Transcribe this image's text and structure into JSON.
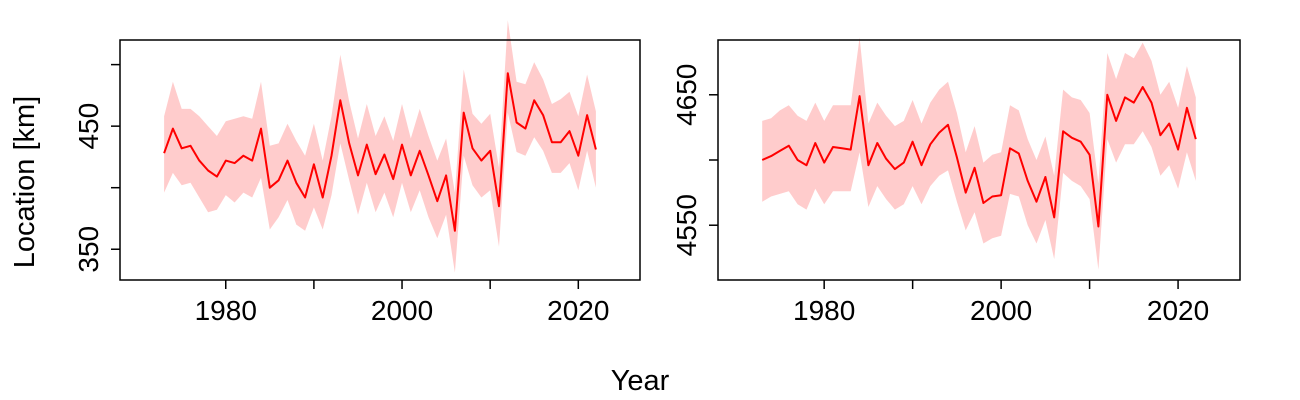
{
  "figure": {
    "xlabel": "Year",
    "ylabel": "Location [km]"
  },
  "chart_data": [
    {
      "type": "line",
      "title": "",
      "xlim": [
        1968,
        2027
      ],
      "ylim": [
        325,
        520
      ],
      "xticks": [
        1980,
        2000,
        2020
      ],
      "xticks_minor": [
        1990,
        2010
      ],
      "yticks": [
        350,
        450
      ],
      "yticks_minor": [
        400,
        500
      ],
      "grid": false,
      "legend": "none",
      "line_color": "#ff0000",
      "band_color": "#ffcccc",
      "series": [
        {
          "x": [
            1973,
            1974,
            1975,
            1976,
            1977,
            1978,
            1979,
            1980,
            1981,
            1982,
            1983,
            1984,
            1985,
            1986,
            1987,
            1988,
            1989,
            1990,
            1991,
            1992,
            1993,
            1994,
            1995,
            1996,
            1997,
            1998,
            1999,
            2000,
            2001,
            2002,
            2003,
            2004,
            2005,
            2006,
            2007,
            2008,
            2009,
            2010,
            2011,
            2012,
            2013,
            2014,
            2015,
            2016,
            2017,
            2018,
            2019,
            2020,
            2021,
            2022
          ],
          "y": [
            428,
            448,
            432,
            434,
            422,
            414,
            409,
            422,
            420,
            426,
            422,
            448,
            400,
            406,
            422,
            404,
            392,
            419,
            392,
            426,
            471,
            436,
            410,
            435,
            411,
            427,
            407,
            435,
            410,
            430,
            410,
            389,
            410,
            365,
            461,
            432,
            422,
            430,
            385,
            493,
            453,
            448,
            471,
            459,
            437,
            437,
            446,
            426,
            459,
            431
          ],
          "lower": [
            396,
            412,
            402,
            404,
            392,
            380,
            382,
            394,
            388,
            396,
            392,
            408,
            366,
            376,
            390,
            370,
            365,
            384,
            366,
            394,
            436,
            406,
            378,
            404,
            380,
            396,
            376,
            404,
            380,
            398,
            376,
            359,
            378,
            331,
            426,
            402,
            392,
            398,
            352,
            461,
            429,
            426,
            441,
            430,
            412,
            412,
            420,
            398,
            430,
            400
          ],
          "upper": [
            458,
            486,
            464,
            464,
            458,
            450,
            442,
            454,
            456,
            458,
            456,
            486,
            434,
            436,
            452,
            438,
            426,
            452,
            422,
            458,
            508,
            470,
            440,
            468,
            442,
            458,
            438,
            468,
            440,
            464,
            442,
            422,
            440,
            396,
            496,
            460,
            452,
            460,
            416,
            536,
            486,
            484,
            502,
            488,
            468,
            472,
            478,
            458,
            492,
            462
          ]
        }
      ]
    },
    {
      "type": "line",
      "title": "",
      "xlim": [
        1968,
        2027
      ],
      "ylim": [
        4508,
        4692
      ],
      "xticks": [
        1980,
        2000,
        2020
      ],
      "xticks_minor": [
        1990,
        2010
      ],
      "yticks": [
        4550,
        4650
      ],
      "yticks_minor": [
        4600
      ],
      "grid": false,
      "legend": "none",
      "line_color": "#ff0000",
      "band_color": "#ffcccc",
      "series": [
        {
          "x": [
            1973,
            1974,
            1975,
            1976,
            1977,
            1978,
            1979,
            1980,
            1981,
            1982,
            1983,
            1984,
            1985,
            1986,
            1987,
            1988,
            1989,
            1990,
            1991,
            1992,
            1993,
            1994,
            1995,
            1996,
            1997,
            1998,
            1999,
            2000,
            2001,
            2002,
            2003,
            2004,
            2005,
            2006,
            2007,
            2008,
            2009,
            2010,
            2011,
            2012,
            2013,
            2014,
            2015,
            2016,
            2017,
            2018,
            2019,
            2020,
            2021,
            2022
          ],
          "y": [
            4600,
            4603,
            4607,
            4611,
            4600,
            4596,
            4613,
            4598,
            4610,
            4609,
            4608,
            4649,
            4596,
            4613,
            4601,
            4593,
            4598,
            4614,
            4596,
            4612,
            4621,
            4627,
            4602,
            4575,
            4594,
            4567,
            4572,
            4573,
            4609,
            4605,
            4584,
            4568,
            4587,
            4556,
            4622,
            4617,
            4614,
            4604,
            4549,
            4650,
            4630,
            4648,
            4644,
            4656,
            4644,
            4619,
            4628,
            4608,
            4640,
            4616
          ],
          "lower": [
            4568,
            4572,
            4574,
            4576,
            4566,
            4562,
            4578,
            4566,
            4576,
            4576,
            4576,
            4606,
            4564,
            4580,
            4570,
            4562,
            4566,
            4580,
            4566,
            4580,
            4588,
            4592,
            4568,
            4546,
            4560,
            4536,
            4540,
            4542,
            4574,
            4572,
            4550,
            4536,
            4554,
            4524,
            4590,
            4584,
            4580,
            4570,
            4516,
            4616,
            4598,
            4612,
            4612,
            4622,
            4610,
            4588,
            4596,
            4578,
            4606,
            4584
          ],
          "upper": [
            4630,
            4632,
            4638,
            4642,
            4634,
            4630,
            4644,
            4630,
            4642,
            4642,
            4642,
            4694,
            4628,
            4644,
            4634,
            4626,
            4630,
            4646,
            4628,
            4644,
            4654,
            4660,
            4636,
            4606,
            4626,
            4598,
            4604,
            4606,
            4642,
            4638,
            4616,
            4600,
            4618,
            4588,
            4654,
            4648,
            4646,
            4636,
            4582,
            4682,
            4662,
            4682,
            4678,
            4690,
            4676,
            4650,
            4660,
            4640,
            4672,
            4648
          ]
        }
      ]
    }
  ]
}
